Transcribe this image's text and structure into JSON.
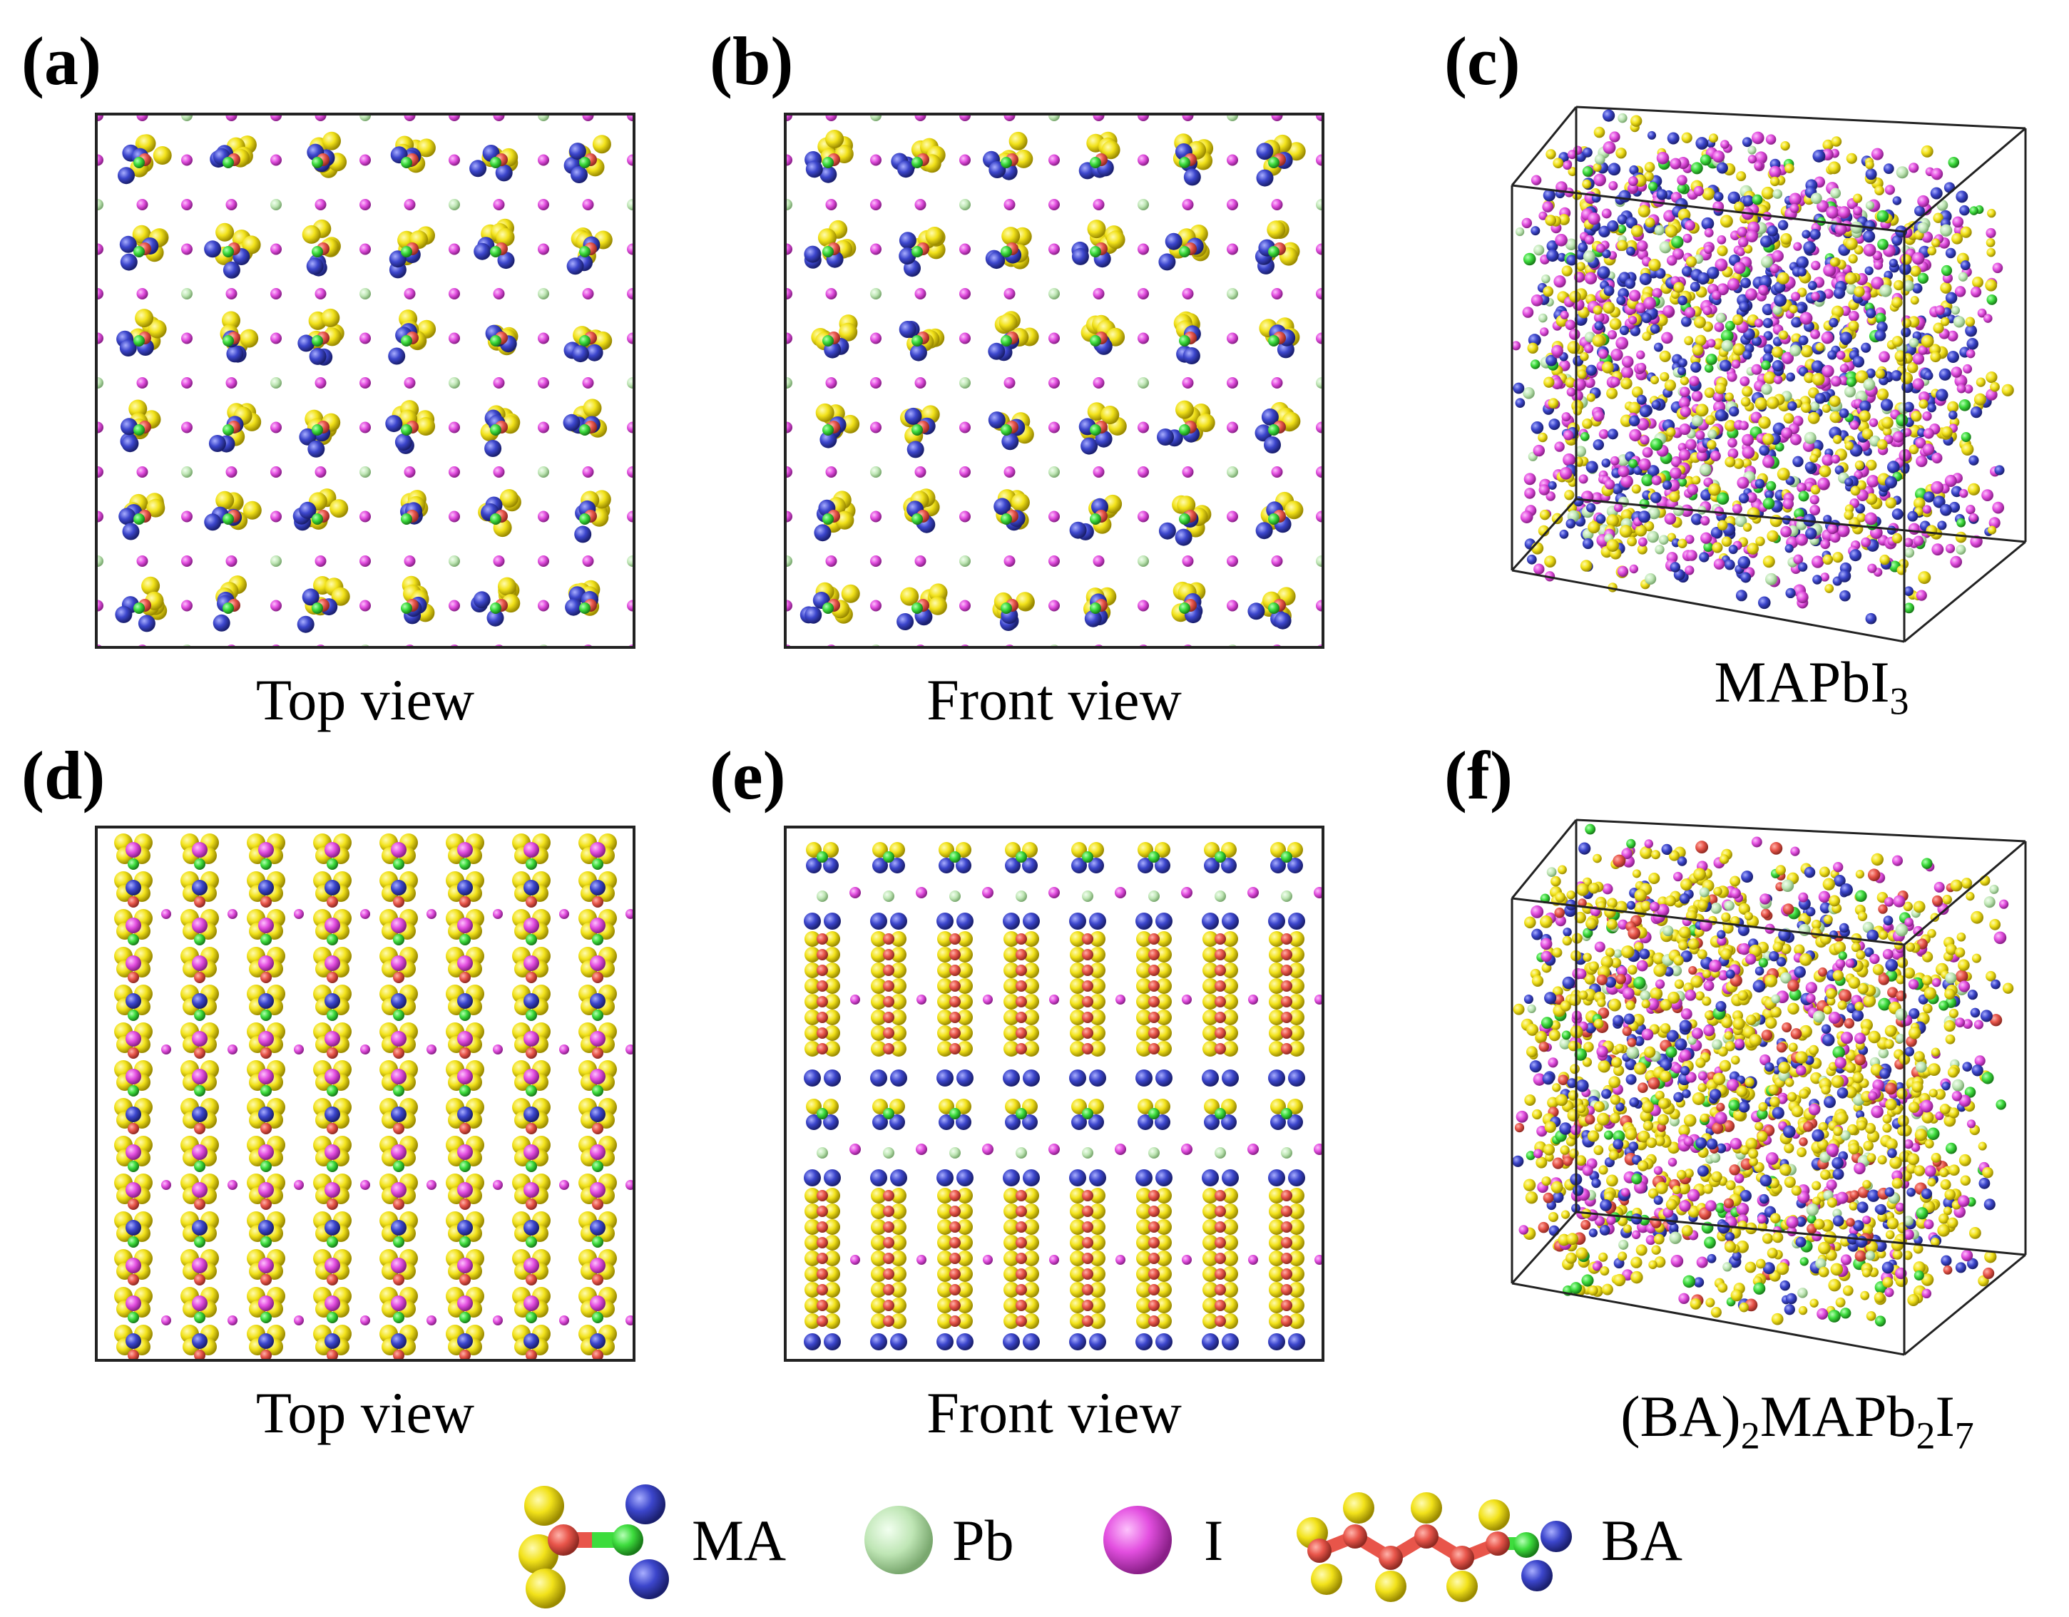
{
  "panels": [
    {
      "label": "(a)",
      "caption": "Top view"
    },
    {
      "label": "(b)",
      "caption": "Front view"
    },
    {
      "label": "(c)",
      "caption_main": "MAPbI",
      "caption_sub": "3"
    },
    {
      "label": "(d)",
      "caption": "Top view"
    },
    {
      "label": "(e)",
      "caption": "Front view"
    },
    {
      "label": "(f)",
      "caption_parts": [
        "(BA)",
        "2",
        "MAPb",
        "2",
        "I",
        "7"
      ]
    }
  ],
  "legend": [
    {
      "label": "MA",
      "icon": "ma-molecule-icon"
    },
    {
      "label": "Pb",
      "icon": "pb-atom-icon"
    },
    {
      "label": "I",
      "icon": "i-atom-icon"
    },
    {
      "label": "BA",
      "icon": "ba-molecule-icon"
    }
  ],
  "colors": {
    "hydrogen": "#f2e21a",
    "nitrogen": "#3c46cc",
    "carbon": "#e8554a",
    "bond": "#3ddc3d",
    "pb": "#bfe6b5",
    "iodine": "#e34fe0",
    "frame": "#222222"
  }
}
